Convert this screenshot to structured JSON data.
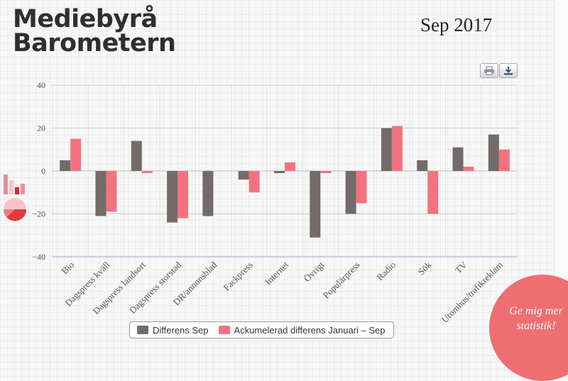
{
  "header": {
    "logo_line1": "Mediebyrå",
    "logo_line2": "Barometern",
    "period": "Sep 2017"
  },
  "toolbar": {
    "print_icon": "print-icon",
    "download_icon": "download-icon"
  },
  "side_icons": [
    "bar-chart-icon",
    "pie-chart-icon"
  ],
  "cta": {
    "line1": "Ge mig mer",
    "line2": "statistik!",
    "color": "#ee6e72"
  },
  "legend": {
    "items": [
      {
        "label": "Differens Sep",
        "color": "#736b69"
      },
      {
        "label": "Ackumelerad differens Januari – Sep",
        "color": "#f47280"
      }
    ]
  },
  "chart_data": {
    "type": "bar",
    "categories": [
      "Bio",
      "Dagspress kväll",
      "Dagspress landsort",
      "Dagspress storstad",
      "DR/annonsblad",
      "Fackpress",
      "Internet",
      "Övrigt",
      "Populärpress",
      "Radio",
      "Sök",
      "TV",
      "Utomhus/trafikreklam"
    ],
    "series": [
      {
        "name": "Differens Sep",
        "color": "#736b69",
        "values": [
          5,
          -21,
          14,
          -24,
          -21,
          -4,
          -1,
          -31,
          -20,
          20,
          5,
          11,
          17
        ]
      },
      {
        "name": "Ackumelerad differens Januari – Sep",
        "color": "#f47280",
        "values": [
          15,
          -19,
          -1,
          -22,
          0,
          -10,
          4,
          -1,
          -15,
          21,
          -20,
          2,
          10
        ]
      }
    ],
    "yticks": [
      40,
      20,
      0,
      -20,
      -40
    ],
    "ylim": [
      -40,
      40
    ],
    "grid": true,
    "legend_position": "bottom"
  }
}
